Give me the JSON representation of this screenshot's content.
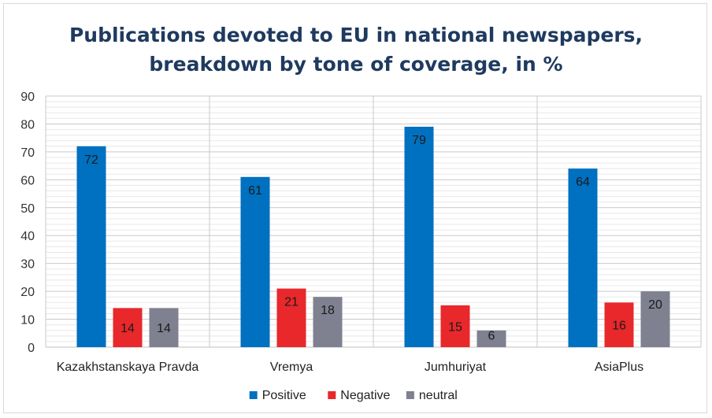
{
  "chart_data": {
    "type": "bar",
    "title_lines": [
      "Publications devoted to EU in national newspapers,",
      "breakdown by tone of coverage, in %"
    ],
    "categories": [
      "Kazakhstanskaya Pravda",
      "Vremya",
      "Jumhuriyat",
      "AsiaPlus"
    ],
    "series": [
      {
        "name": "Positive",
        "values": [
          72,
          61,
          79,
          64
        ],
        "color": "#0070c0"
      },
      {
        "name": "Negative",
        "values": [
          14,
          21,
          15,
          16
        ],
        "color": "#e8282b"
      },
      {
        "name": "neutral",
        "values": [
          14,
          18,
          6,
          20
        ],
        "color": "#7f8190"
      }
    ],
    "ylim": [
      0,
      90
    ],
    "yticks": [
      0,
      10,
      20,
      30,
      40,
      50,
      60,
      70,
      80,
      90
    ],
    "grid": true,
    "legend_position": "bottom",
    "data_labels": true
  }
}
